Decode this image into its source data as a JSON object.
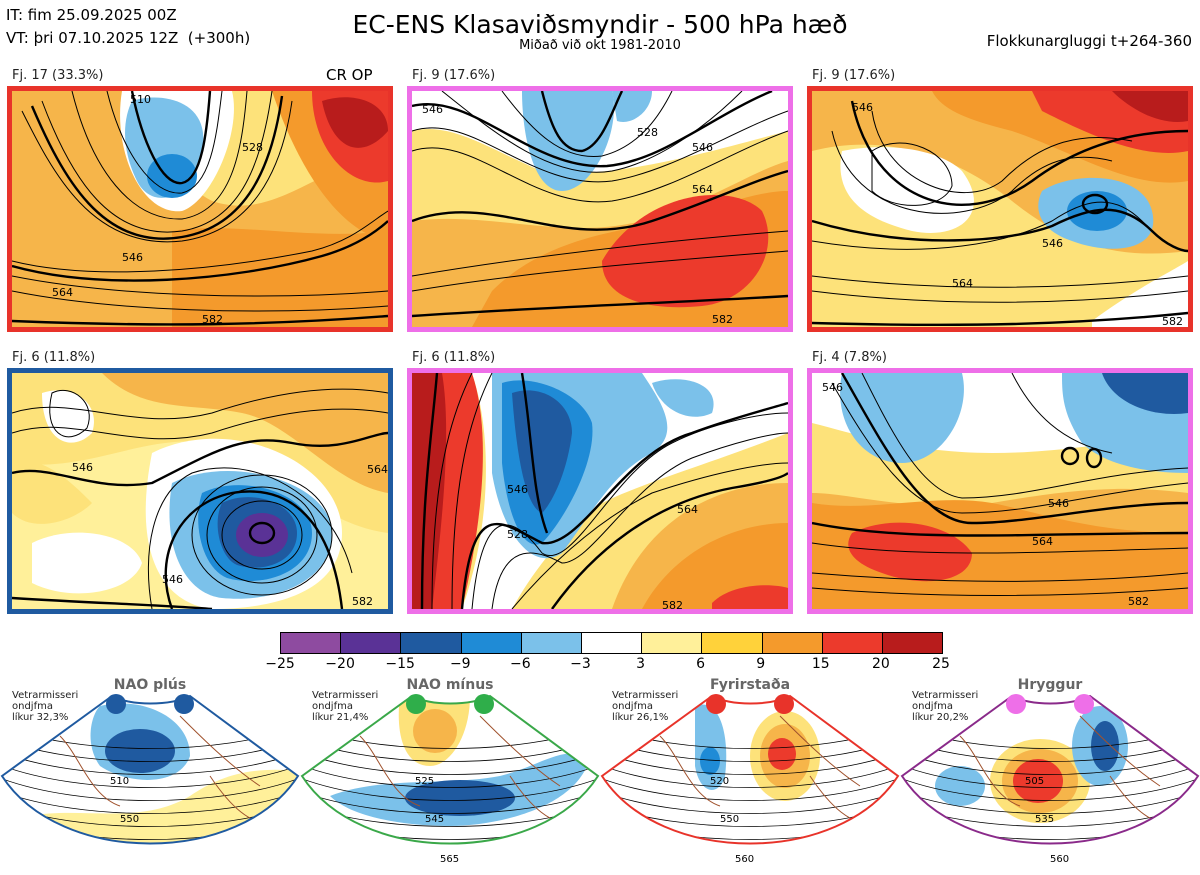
{
  "header": {
    "it_line": "IT: fim 25.09.2025 00Z",
    "vt_line": "VT: þri 07.10.2025 12Z  (+300h)",
    "title": "EC-ENS Klasaviðsmyndir - 500 hPa hæð",
    "subtitle": "Miðað við okt 1981-2010",
    "window": "Flokkunargluggi t+264-360"
  },
  "cr_op_label": "CR OP",
  "panels": [
    {
      "label": "Fj. 17 (33.3%)",
      "border": "#e8332a",
      "contours": [
        "510",
        "528",
        "546",
        "564",
        "582"
      ]
    },
    {
      "label": "Fj. 9 (17.6%)",
      "border": "#ee6fe8",
      "contours": [
        "546",
        "528",
        "546",
        "564",
        "582"
      ]
    },
    {
      "label": "Fj. 9 (17.6%)",
      "border": "#e8332a",
      "contours": [
        "546",
        "564",
        "582",
        "546"
      ]
    },
    {
      "label": "Fj. 6 (11.8%)",
      "border": "#1f5aa0",
      "contours": [
        "546",
        "546",
        "564",
        "582"
      ]
    },
    {
      "label": "Fj. 6 (11.8%)",
      "border": "#ee6fe8",
      "contours": [
        "528",
        "546",
        "564",
        "582"
      ]
    },
    {
      "label": "Fj. 4 (7.8%)",
      "border": "#ee6fe8",
      "contours": [
        "546",
        "546",
        "564",
        "582"
      ]
    }
  ],
  "colorbar": {
    "ticks": [
      "−25",
      "−20",
      "−15",
      "−9",
      "−6",
      "−3",
      "3",
      "6",
      "9",
      "15",
      "20",
      "25"
    ],
    "colors": [
      "#8e4ba0",
      "#5a3296",
      "#1f5aa0",
      "#1f8bd6",
      "#7bc1ea",
      "#ffffff",
      "#fff09a",
      "#ffd23a",
      "#f49a2c",
      "#ec3a2c",
      "#b81c1c"
    ]
  },
  "regimes": [
    {
      "title": "NAO plús",
      "text": [
        "Vetrarmisseri",
        "ondjfma",
        "líkur 32,3%"
      ],
      "color": "#1f5aa0",
      "dot": "#1f5aa0",
      "contours": [
        "510",
        "550"
      ]
    },
    {
      "title": "NAO mínus",
      "text": [
        "Vetrarmisseri",
        "ondjfma",
        "líkur 21,4%"
      ],
      "color": "#3aa849",
      "dot": "#2fae4a",
      "contours": [
        "525",
        "545",
        "565"
      ]
    },
    {
      "title": "Fyrirstaða",
      "text": [
        "Vetrarmisseri",
        "ondjfma",
        "líkur 26,1%"
      ],
      "color": "#e8332a",
      "dot": "#e8332a",
      "contours": [
        "520",
        "550",
        "560"
      ]
    },
    {
      "title": "Hryggur",
      "text": [
        "Vetrarmisseri",
        "ondjfma",
        "líkur 20,2%"
      ],
      "color": "#8a2a8a",
      "dot": "#ee6fe8",
      "contours": [
        "505",
        "535",
        "560"
      ]
    }
  ]
}
